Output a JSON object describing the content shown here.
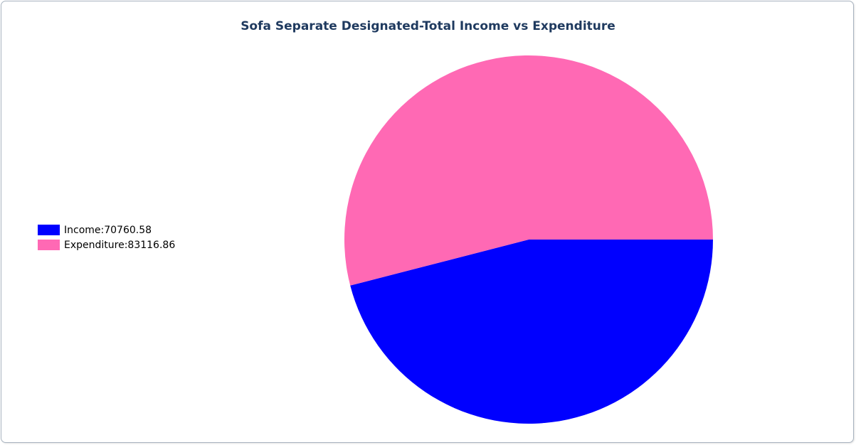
{
  "chart_data": {
    "type": "pie",
    "title": "Sofa Separate Designated-Total Income vs Expenditure",
    "slices": [
      {
        "label": "Income",
        "value": 70760.58,
        "color": "#0000ff",
        "legend": "Income:70760.58"
      },
      {
        "label": "Expenditure",
        "value": 83116.86,
        "color": "#ff69b4",
        "legend": "Expenditure:83116.86"
      }
    ],
    "legend_position": "left",
    "start_direction": "right, clockwise"
  }
}
